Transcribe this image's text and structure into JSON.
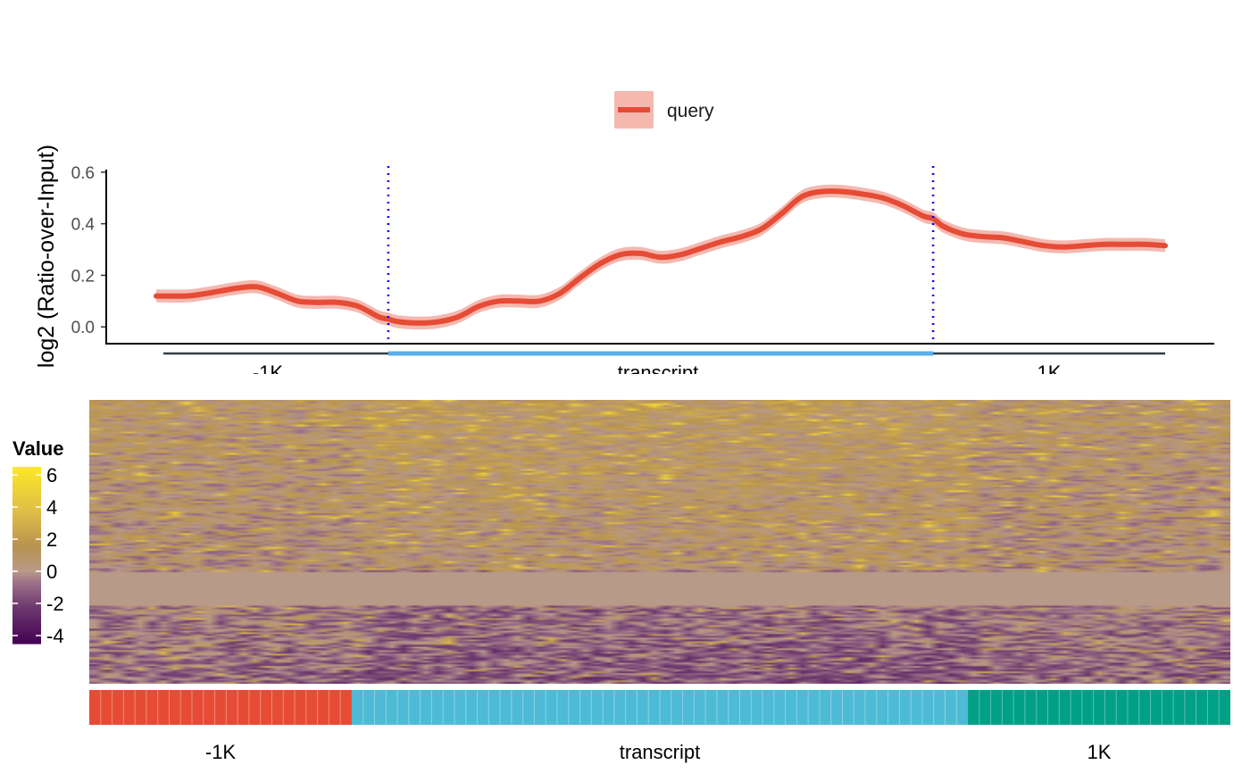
{
  "chart_data": [
    {
      "type": "line",
      "title": "",
      "ylabel": "log2 (Ratio-over-Input)",
      "xlabel": "",
      "legend": {
        "placement": "top-center",
        "entries": [
          "query"
        ]
      },
      "ylim": [
        -0.065,
        0.61
      ],
      "yticks": [
        0.0,
        0.2,
        0.4,
        0.6
      ],
      "ytick_labels": [
        "0.0",
        "0.2",
        "0.4",
        "0.6"
      ],
      "xlim": [
        0,
        100
      ],
      "region_labels": [
        "-1K",
        "transcript",
        "1K"
      ],
      "boundaries": [
        23,
        77
      ],
      "colors": {
        "line": "#E64B35",
        "ribbon": "#F4B8AF",
        "boundary": "#0000FF",
        "gene_model": "#5AAEEB",
        "axis": "#000000"
      },
      "series": [
        {
          "name": "query",
          "x": [
            0,
            3,
            5,
            8,
            10,
            12,
            14,
            16,
            18,
            20,
            22,
            23,
            24,
            26,
            28,
            30,
            32,
            34,
            36,
            38,
            40,
            42,
            44,
            46,
            48,
            50,
            52,
            54,
            56,
            58,
            60,
            62,
            64,
            66,
            68,
            70,
            72,
            74,
            76,
            77,
            78,
            80,
            82,
            84,
            86,
            88,
            90,
            92,
            94,
            96,
            98,
            100
          ],
          "y": [
            0.12,
            0.12,
            0.13,
            0.15,
            0.155,
            0.13,
            0.1,
            0.095,
            0.095,
            0.08,
            0.04,
            0.03,
            0.02,
            0.015,
            0.02,
            0.04,
            0.08,
            0.1,
            0.1,
            0.1,
            0.13,
            0.19,
            0.245,
            0.28,
            0.285,
            0.27,
            0.28,
            0.305,
            0.33,
            0.35,
            0.38,
            0.44,
            0.505,
            0.525,
            0.525,
            0.515,
            0.5,
            0.47,
            0.43,
            0.42,
            0.39,
            0.36,
            0.35,
            0.345,
            0.33,
            0.315,
            0.31,
            0.315,
            0.32,
            0.32,
            0.32,
            0.315
          ],
          "ci_halfwidth": 0.025
        }
      ]
    },
    {
      "type": "heatmap",
      "title": "",
      "legend": {
        "title": "Value",
        "placement": "left",
        "ticks": [
          "6",
          "4",
          "2",
          "0",
          "-2",
          "-4"
        ],
        "range": [
          -4.5,
          6.5
        ]
      },
      "columns": 100,
      "rows": 160,
      "colormap": [
        "#440154",
        "#6E3A6E",
        "#9A6E88",
        "#B89A88",
        "#B8934E",
        "#DDBA4A",
        "#FDE725"
      ],
      "background_value": 0,
      "annotation_track": {
        "segments": [
          {
            "label": "-1K",
            "columns": 23,
            "color": "#E64B35"
          },
          {
            "label": "transcript",
            "columns": 54,
            "color": "#4DBBD5"
          },
          {
            "label": "1K",
            "columns": 23,
            "color": "#00A087"
          }
        ]
      }
    }
  ]
}
